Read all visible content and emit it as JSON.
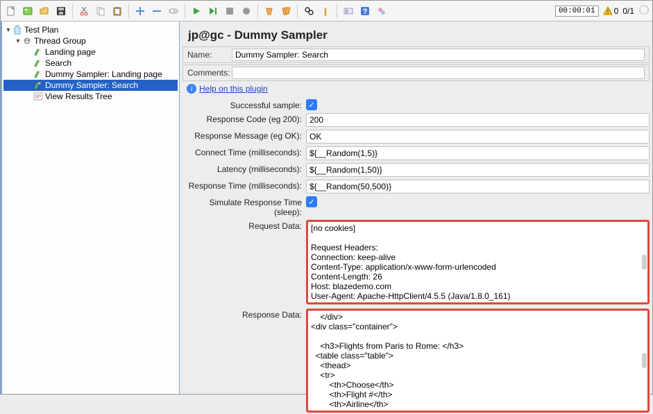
{
  "toolbar": {
    "timer": "00:00:01",
    "warn_count": "0",
    "run_count": "0/1"
  },
  "tree": {
    "root": "Test Plan",
    "group": "Thread Group",
    "items": [
      "Landing page",
      "Search",
      "Dummy Sampler: Landing page",
      "Dummy Sampler: Search",
      "View Results Tree"
    ],
    "selected_index": 3
  },
  "panel": {
    "title": "jp@gc - Dummy Sampler",
    "name_label": "Name:",
    "name_value": "Dummy Sampler: Search",
    "comments_label": "Comments:",
    "comments_value": "",
    "help_text": "Help on this plugin"
  },
  "fields": {
    "successful_label": "Successful sample:",
    "resp_code_label": "Response Code (eg 200):",
    "resp_code_value": "200",
    "resp_msg_label": "Response Message (eg OK):",
    "resp_msg_value": "OK",
    "connect_label": "Connect Time (milliseconds):",
    "connect_value": "${__Random(1,5)}",
    "latency_label": "Latency (milliseconds):",
    "latency_value": "${__Random(1,50)}",
    "resptime_label": "Response Time (milliseconds):",
    "resptime_value": "${__Random(50,500)}",
    "simulate_label": "Simulate Response Time (sleep):",
    "reqdata_label": "Request Data:",
    "reqdata_value": "[no cookies]\n\nRequest Headers:\nConnection: keep-alive\nContent-Type: application/x-www-form-urlencoded\nContent-Length: 26\nHost: blazedemo.com\nUser-Agent: Apache-HttpClient/4.5.5 (Java/1.8.0_161)\n",
    "respdata_label": "Response Data:",
    "respdata_value": "    </div>\n<div class=\"container\">\n    \n    <h3>Flights from Paris to Rome: </h3>\n  <table class=\"table\">\n    <thead>\n    <tr>\n        <th>Choose</th>\n        <th>Flight #</th>\n        <th>Airline</th>"
  },
  "colors": {
    "select_bg": "#2561c4",
    "red_border": "#d94a3c",
    "check_bg": "#2f7bf5"
  }
}
